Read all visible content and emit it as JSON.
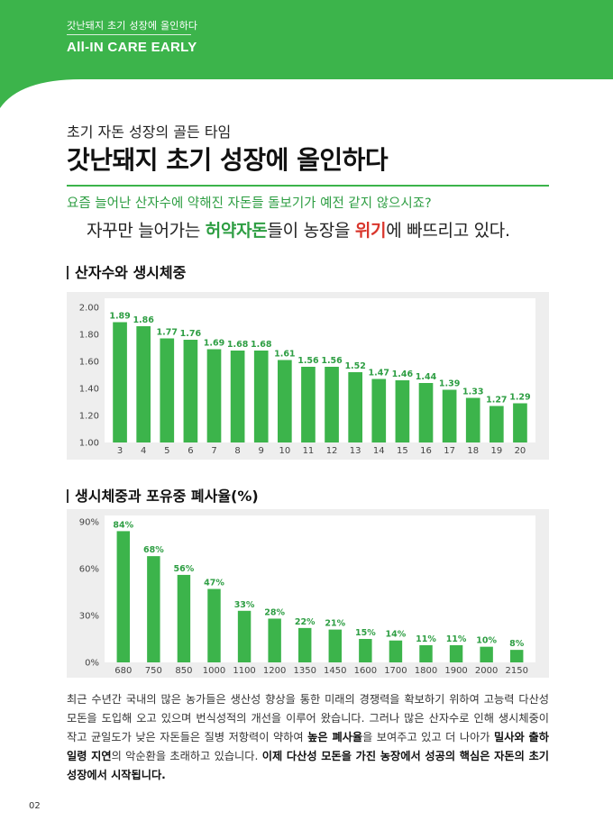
{
  "header": {
    "subtitle": "갓난돼지 초기 성장에 올인하다",
    "brand": "All-IN CARE EARLY"
  },
  "kicker": "초기 자돈 성장의 골든 타임",
  "title": "갓난돼지 초기 성장에 올인하다",
  "question": "요즘 늘어난 산자수에 약해진 자돈들 돌보기가 예전 같지 않으시죠?",
  "headline": {
    "part1": "자꾸만 늘어가는 ",
    "highlight1": "허약자돈",
    "part2": "들이 농장을 ",
    "highlight2": "위기",
    "part3": "에 빠뜨리고 있다."
  },
  "section1_title": "산자수와 생시체중",
  "section2_title": "생시체중과 포유중 폐사율(%)",
  "colors": {
    "accent": "#3cb44b",
    "label": "#2e9e43",
    "danger": "#d9362c"
  },
  "chart_data": [
    {
      "type": "bar",
      "title": "산자수와 생시체중",
      "categories": [
        "3",
        "4",
        "5",
        "6",
        "7",
        "8",
        "9",
        "10",
        "11",
        "12",
        "13",
        "14",
        "15",
        "16",
        "17",
        "18",
        "19",
        "20"
      ],
      "values": [
        1.89,
        1.86,
        1.77,
        1.76,
        1.69,
        1.68,
        1.68,
        1.61,
        1.56,
        1.56,
        1.52,
        1.47,
        1.46,
        1.44,
        1.39,
        1.33,
        1.27,
        1.29
      ],
      "value_labels": [
        "1.89",
        "1.86",
        "1.77",
        "1.76",
        "1.69",
        "1.68",
        "1.68",
        "1.61",
        "1.56",
        "1.56",
        "1.52",
        "1.47",
        "1.46",
        "1.44",
        "1.39",
        "1.33",
        "1.27",
        "1.29"
      ],
      "yticks": [
        "2.00",
        "1.80",
        "1.60",
        "1.40",
        "1.20",
        "1.00"
      ],
      "ylim": [
        1.0,
        2.0
      ],
      "grid": false
    },
    {
      "type": "bar",
      "title": "생시체중과 포유중 폐사율(%)",
      "categories": [
        "680",
        "750",
        "850",
        "1000",
        "1100",
        "1200",
        "1350",
        "1450",
        "1600",
        "1700",
        "1800",
        "1900",
        "2000",
        "2150"
      ],
      "values": [
        84,
        68,
        56,
        47,
        33,
        28,
        22,
        21,
        15,
        14,
        11,
        11,
        10,
        8
      ],
      "value_labels": [
        "84%",
        "68%",
        "56%",
        "47%",
        "33%",
        "28%",
        "22%",
        "21%",
        "15%",
        "14%",
        "11%",
        "11%",
        "10%",
        "8%"
      ],
      "yticks": [
        "90%",
        "60%",
        "30%",
        "0%"
      ],
      "ylim": [
        0,
        90
      ],
      "grid": false
    }
  ],
  "body": {
    "t1": "최근 수년간 국내의 많은 농가들은 생산성 향상을 통한 미래의 경쟁력을 확보하기 위하여 고능력 다산성 모돈을 도입해 오고 있으며 번식성적의 개선을 이루어 왔습니다. 그러나 많은 산자수로 인해 생시체중이 작고 균일도가 낮은 자돈들은 질병 저항력이 약하여 ",
    "b1": "높은 폐사율",
    "t2": "을 보여주고 있고 더 나아가 ",
    "b2": "밀사와 출하일령 지연",
    "t3": "의 악순환을 초래하고 있습니다. ",
    "b3": "이제 다산성 모돈을 가진 농장에서 성공의 핵심은 자돈의 초기 성장에서 시작됩니다."
  },
  "page_number": "02"
}
